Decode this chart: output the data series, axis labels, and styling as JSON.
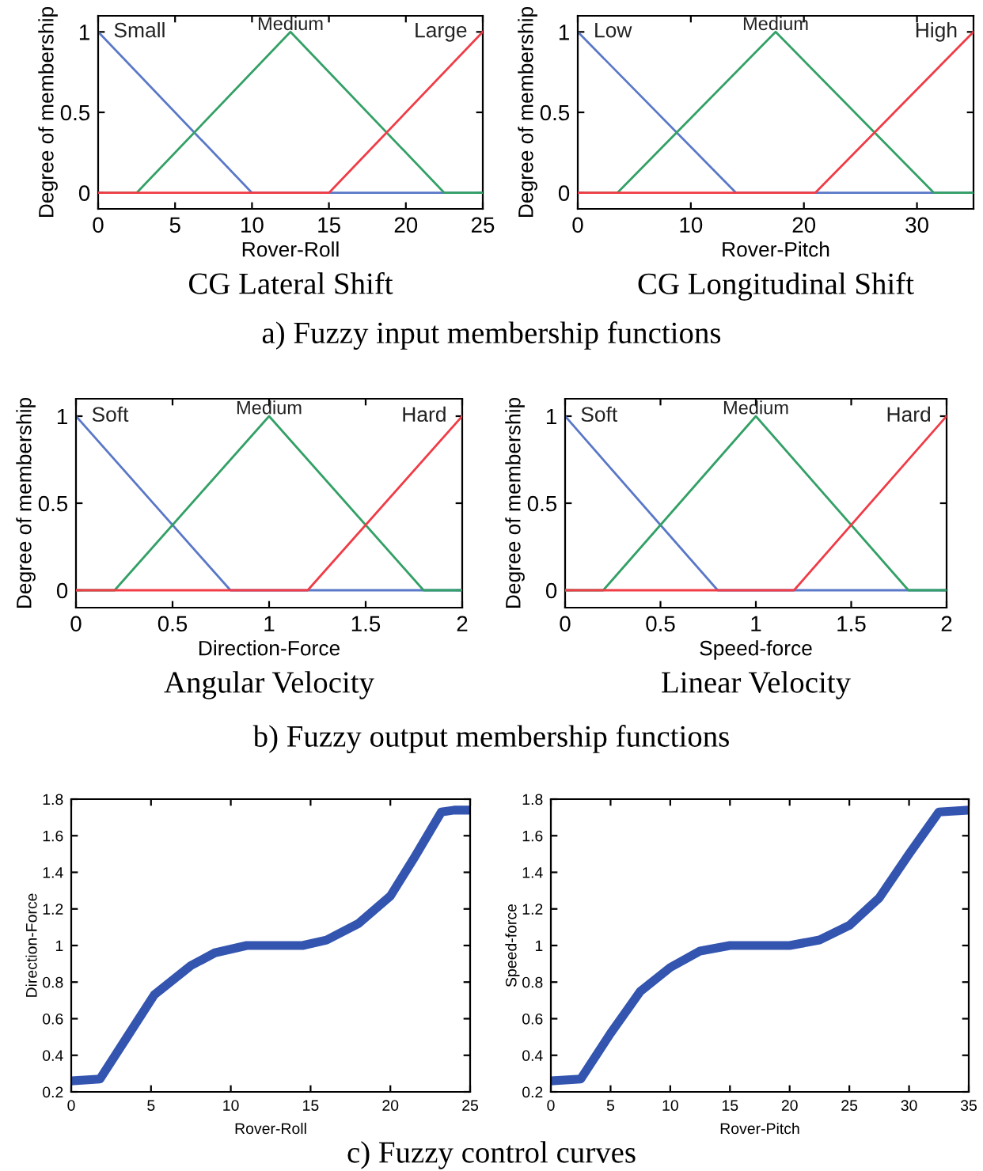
{
  "chart_data": [
    {
      "type": "line",
      "title": "CG Lateral Shift",
      "xlabel": "Rover-Roll",
      "ylabel": "Degree of membership",
      "xlim": [
        0,
        25
      ],
      "xticks": [
        0,
        5,
        10,
        15,
        20,
        25
      ],
      "ylim": [
        -0.1,
        1.1
      ],
      "yticks": [
        0,
        0.5,
        1
      ],
      "annotations": [
        "a) Fuzzy input membership functions"
      ],
      "series": [
        {
          "name": "Small",
          "color": "#5a78c8",
          "x": [
            0,
            10,
            25
          ],
          "values": [
            1,
            0,
            0
          ]
        },
        {
          "name": "Medium",
          "color": "#33a066",
          "x": [
            0,
            2.5,
            12.5,
            22.5,
            25
          ],
          "values": [
            0,
            0,
            1,
            0,
            0
          ]
        },
        {
          "name": "Large",
          "color": "#f03c46",
          "x": [
            0,
            15,
            25
          ],
          "values": [
            0,
            0,
            1
          ]
        }
      ]
    },
    {
      "type": "line",
      "title": "CG Longitudinal Shift",
      "xlabel": "Rover-Pitch",
      "ylabel": "Degree of membership",
      "xlim": [
        0,
        35
      ],
      "xticks": [
        0,
        10,
        20,
        30
      ],
      "ylim": [
        -0.1,
        1.1
      ],
      "yticks": [
        0,
        0.5,
        1
      ],
      "series": [
        {
          "name": "Low",
          "color": "#5a78c8",
          "x": [
            0,
            14,
            35
          ],
          "values": [
            1,
            0,
            0
          ]
        },
        {
          "name": "Medium",
          "color": "#33a066",
          "x": [
            0,
            3.5,
            17.5,
            31.5,
            35
          ],
          "values": [
            0,
            0,
            1,
            0,
            0
          ]
        },
        {
          "name": "High",
          "color": "#f03c46",
          "x": [
            0,
            21,
            35
          ],
          "values": [
            0,
            0,
            1
          ]
        }
      ]
    },
    {
      "type": "line",
      "title": "Angular Velocity",
      "xlabel": "Direction-Force",
      "ylabel": "Degree of membership",
      "xlim": [
        0,
        2
      ],
      "xticks": [
        0,
        0.5,
        1,
        1.5,
        2
      ],
      "ylim": [
        -0.1,
        1.1
      ],
      "yticks": [
        0,
        0.5,
        1
      ],
      "annotations": [
        "b) Fuzzy output membership functions"
      ],
      "series": [
        {
          "name": "Soft",
          "color": "#5a78c8",
          "x": [
            0,
            0.8,
            2
          ],
          "values": [
            1,
            0,
            0
          ]
        },
        {
          "name": "Medium",
          "color": "#33a066",
          "x": [
            0,
            0.2,
            1,
            1.8,
            2
          ],
          "values": [
            0,
            0,
            1,
            0,
            0
          ]
        },
        {
          "name": "Hard",
          "color": "#f03c46",
          "x": [
            0,
            1.2,
            2
          ],
          "values": [
            0,
            0,
            1
          ]
        }
      ]
    },
    {
      "type": "line",
      "title": "Linear Velocity",
      "xlabel": "Speed-force",
      "ylabel": "Degree of membership",
      "xlim": [
        0,
        2
      ],
      "xticks": [
        0,
        0.5,
        1,
        1.5,
        2
      ],
      "ylim": [
        -0.1,
        1.1
      ],
      "yticks": [
        0,
        0.5,
        1
      ],
      "series": [
        {
          "name": "Soft",
          "color": "#5a78c8",
          "x": [
            0,
            0.8,
            2
          ],
          "values": [
            1,
            0,
            0
          ]
        },
        {
          "name": "Medium",
          "color": "#33a066",
          "x": [
            0,
            0.2,
            1,
            1.8,
            2
          ],
          "values": [
            0,
            0,
            1,
            0,
            0
          ]
        },
        {
          "name": "Hard",
          "color": "#f03c46",
          "x": [
            0,
            1.2,
            2
          ],
          "values": [
            0,
            0,
            1
          ]
        }
      ]
    },
    {
      "type": "line",
      "xlabel": "Rover-Roll",
      "ylabel": "Direction-Force",
      "xlim": [
        0,
        25
      ],
      "xticks": [
        0,
        5,
        10,
        15,
        20,
        25
      ],
      "ylim": [
        0.2,
        1.8
      ],
      "yticks": [
        0.2,
        0.4,
        0.6,
        0.8,
        1,
        1.2,
        1.4,
        1.6,
        1.8
      ],
      "annotations": [
        "c) Fuzzy control curves"
      ],
      "series": [
        {
          "color": "#3355b0",
          "x": [
            0,
            1.8,
            3.5,
            5.2,
            7.5,
            9,
            11,
            13,
            14.5,
            16,
            18,
            20,
            21.5,
            23.2,
            24,
            25
          ],
          "values": [
            0.26,
            0.27,
            0.5,
            0.73,
            0.89,
            0.96,
            1.0,
            1.0,
            1.0,
            1.03,
            1.12,
            1.27,
            1.48,
            1.73,
            1.74,
            1.74
          ]
        }
      ]
    },
    {
      "type": "line",
      "xlabel": "Rover-Pitch",
      "ylabel": "Speed-force",
      "xlim": [
        0,
        35
      ],
      "xticks": [
        0,
        5,
        10,
        15,
        20,
        25,
        30,
        35
      ],
      "ylim": [
        0.2,
        1.8
      ],
      "yticks": [
        0.2,
        0.4,
        0.6,
        0.8,
        1,
        1.2,
        1.4,
        1.6,
        1.8
      ],
      "series": [
        {
          "color": "#3355b0",
          "x": [
            0,
            2.5,
            5,
            7.5,
            10,
            12.5,
            15,
            17.5,
            20,
            22.5,
            25,
            27.5,
            30,
            32.5,
            35
          ],
          "values": [
            0.26,
            0.27,
            0.52,
            0.75,
            0.88,
            0.97,
            1.0,
            1.0,
            1.0,
            1.03,
            1.11,
            1.26,
            1.5,
            1.73,
            1.74
          ]
        }
      ]
    }
  ]
}
